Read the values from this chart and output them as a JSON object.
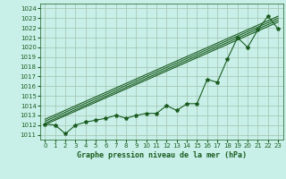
{
  "title": "Graphe pression niveau de la mer (hPa)",
  "bg_color": "#c8f0e8",
  "grid_color": "#a8c8b8",
  "line_color": "#1a5c20",
  "xlim": [
    -0.5,
    23.5
  ],
  "ylim": [
    1010.5,
    1024.5
  ],
  "yticks": [
    1011,
    1012,
    1013,
    1014,
    1015,
    1016,
    1017,
    1018,
    1019,
    1020,
    1021,
    1022,
    1023,
    1024
  ],
  "xticks": [
    0,
    1,
    2,
    3,
    4,
    5,
    6,
    7,
    8,
    9,
    10,
    11,
    12,
    13,
    14,
    15,
    16,
    17,
    18,
    19,
    20,
    21,
    22,
    23
  ],
  "data_x": [
    0,
    1,
    2,
    3,
    4,
    5,
    6,
    7,
    8,
    9,
    10,
    11,
    12,
    13,
    14,
    15,
    16,
    17,
    18,
    19,
    20,
    21,
    22,
    23
  ],
  "data_y": [
    1012.1,
    1012.0,
    1011.1,
    1012.0,
    1012.3,
    1012.5,
    1012.7,
    1013.0,
    1012.7,
    1013.0,
    1013.2,
    1013.2,
    1014.0,
    1013.5,
    1014.2,
    1014.2,
    1016.7,
    1016.4,
    1018.8,
    1021.0,
    1020.0,
    1021.8,
    1023.2,
    1021.9
  ],
  "trend_lines": [
    {
      "x0": 0,
      "y0": 1012.05,
      "x1": 23,
      "y1": 1022.6
    },
    {
      "x0": 0,
      "y0": 1012.2,
      "x1": 23,
      "y1": 1022.8
    },
    {
      "x0": 0,
      "y0": 1012.4,
      "x1": 23,
      "y1": 1023.0
    },
    {
      "x0": 0,
      "y0": 1012.6,
      "x1": 23,
      "y1": 1023.2
    }
  ],
  "figsize": [
    3.2,
    2.0
  ],
  "dpi": 100
}
